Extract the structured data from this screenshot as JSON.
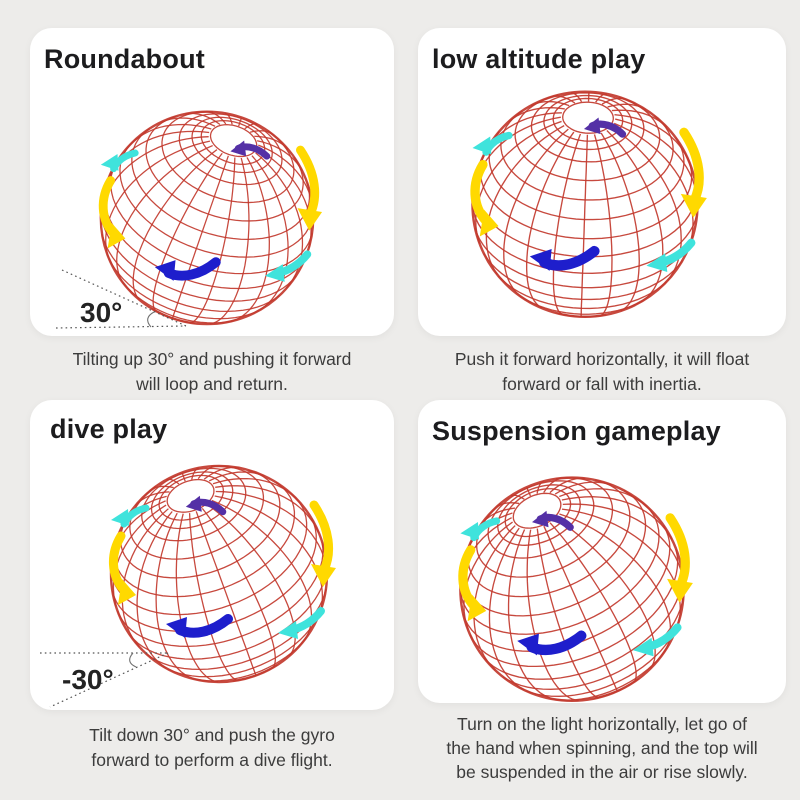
{
  "page": {
    "background_color": "#edecea",
    "card_color": "#ffffff"
  },
  "colors": {
    "wireframe_red": "#c23a2e",
    "arrow_yellow": "#ffd900",
    "arrow_cyan": "#3fe3dc",
    "arrow_blue": "#1e1ecc",
    "arrow_purple": "#5430a6",
    "heading_text": "#1c1c1e",
    "caption_text": "#3c3c3c"
  },
  "panels": [
    {
      "title": "Roundabout",
      "caption_lines": [
        "Tilting up 30° and pushing it forward",
        "will loop and return."
      ],
      "angle_label": "30°",
      "tilt_direction": "up"
    },
    {
      "title": "low altitude play",
      "caption_lines": [
        "Push it forward horizontally, it will float",
        "forward or fall with inertia."
      ]
    },
    {
      "title": "dive play",
      "caption_lines": [
        "Tilt down 30° and push the gyro",
        "forward to perform a dive flight."
      ],
      "angle_label": "-30°",
      "tilt_direction": "down"
    },
    {
      "title": "Suspension gameplay",
      "caption_lines": [
        "Turn on the light horizontally, let go of",
        "the hand when spinning, and the top will",
        "be suspended in the air or rise slowly."
      ]
    }
  ],
  "illustration": {
    "subject": "red wireframe flying gyro ball",
    "spin_arrows": [
      "yellow-left",
      "cyan-upper-left",
      "yellow-right",
      "cyan-right",
      "blue-bottom",
      "purple-at-pole"
    ]
  }
}
